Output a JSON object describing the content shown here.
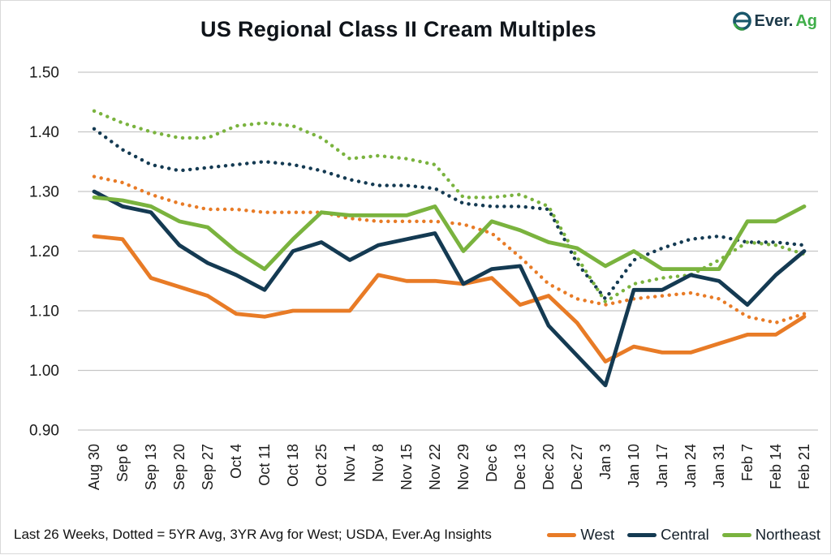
{
  "title": "US Regional Class II Cream Multiples",
  "logo": {
    "text_dark": "Ever.",
    "text_green": "Ag"
  },
  "footer": {
    "note": "Last 26 Weeks, Dotted = 5YR Avg, 3YR Avg for West; USDA, Ever.Ag Insights"
  },
  "legend": [
    {
      "label": "West",
      "color": "#E87B26"
    },
    {
      "label": "Central",
      "color": "#143A52"
    },
    {
      "label": "Northeast",
      "color": "#7AB33E"
    }
  ],
  "colors": {
    "west": "#E87B26",
    "central": "#143A52",
    "northeast": "#7AB33E",
    "gridline": "#C6C6C6",
    "axis_text": "#1A1A1A",
    "logo_teal": "#19576B",
    "logo_green": "#3FAE49"
  },
  "chart_data": {
    "type": "line",
    "title": "US Regional Class II Cream Multiples",
    "xlabel": "",
    "ylabel": "",
    "ylim": [
      0.9,
      1.5
    ],
    "yticks": [
      "1.50",
      "1.40",
      "1.30",
      "1.20",
      "1.10",
      "1.00",
      "0.90"
    ],
    "grid": "horizontal",
    "legend_position": "bottom-right",
    "x_labels": [
      "Aug 30",
      "Sep 6",
      "Sep 13",
      "Sep 20",
      "Sep 27",
      "Oct 4",
      "Oct 11",
      "Oct 18",
      "Oct 25",
      "Nov 1",
      "Nov 8",
      "Nov 15",
      "Nov 22",
      "Nov 29",
      "Dec 6",
      "Dec 13",
      "Dec 20",
      "Dec 27",
      "Jan 3",
      "Jan 10",
      "Jan 17",
      "Jan 24",
      "Jan 31",
      "Feb 7",
      "Feb 14",
      "Feb 21"
    ],
    "series": [
      {
        "name": "West 3YR Avg",
        "group": "West",
        "style": "dotted",
        "color": "#E87B26",
        "values": [
          1.325,
          1.315,
          1.295,
          1.28,
          1.27,
          1.27,
          1.265,
          1.265,
          1.265,
          1.255,
          1.25,
          1.25,
          1.25,
          1.245,
          1.23,
          1.19,
          1.145,
          1.12,
          1.11,
          1.12,
          1.125,
          1.13,
          1.12,
          1.09,
          1.08,
          1.095
        ]
      },
      {
        "name": "Central 5YR Avg",
        "group": "Central",
        "style": "dotted",
        "color": "#143A52",
        "values": [
          1.405,
          1.37,
          1.345,
          1.335,
          1.34,
          1.345,
          1.35,
          1.345,
          1.335,
          1.32,
          1.31,
          1.31,
          1.305,
          1.28,
          1.275,
          1.275,
          1.27,
          1.18,
          1.12,
          1.185,
          1.205,
          1.22,
          1.225,
          1.215,
          1.215,
          1.21
        ]
      },
      {
        "name": "Northeast 5YR Avg",
        "group": "Northeast",
        "style": "dotted",
        "color": "#7AB33E",
        "values": [
          1.435,
          1.415,
          1.4,
          1.39,
          1.39,
          1.41,
          1.415,
          1.41,
          1.39,
          1.355,
          1.36,
          1.355,
          1.345,
          1.29,
          1.29,
          1.295,
          1.275,
          1.19,
          1.115,
          1.145,
          1.155,
          1.16,
          1.185,
          1.215,
          1.21,
          1.195
        ]
      },
      {
        "name": "West",
        "group": "West",
        "style": "solid",
        "color": "#E87B26",
        "values": [
          1.225,
          1.22,
          1.155,
          1.14,
          1.125,
          1.095,
          1.09,
          1.1,
          1.1,
          1.1,
          1.16,
          1.15,
          1.15,
          1.145,
          1.155,
          1.11,
          1.125,
          1.08,
          1.015,
          1.04,
          1.03,
          1.03,
          1.045,
          1.06,
          1.06,
          1.09
        ]
      },
      {
        "name": "Central",
        "group": "Central",
        "style": "solid",
        "color": "#143A52",
        "values": [
          1.3,
          1.275,
          1.265,
          1.21,
          1.18,
          1.16,
          1.135,
          1.2,
          1.215,
          1.185,
          1.21,
          1.22,
          1.23,
          1.145,
          1.17,
          1.175,
          1.075,
          1.025,
          0.975,
          1.135,
          1.135,
          1.16,
          1.15,
          1.11,
          1.16,
          1.2
        ]
      },
      {
        "name": "Northeast",
        "group": "Northeast",
        "style": "solid",
        "color": "#7AB33E",
        "values": [
          1.29,
          1.285,
          1.275,
          1.25,
          1.24,
          1.2,
          1.17,
          1.22,
          1.265,
          1.26,
          1.26,
          1.26,
          1.275,
          1.2,
          1.25,
          1.235,
          1.215,
          1.205,
          1.175,
          1.2,
          1.17,
          1.17,
          1.17,
          1.25,
          1.25,
          1.275
        ]
      }
    ]
  }
}
